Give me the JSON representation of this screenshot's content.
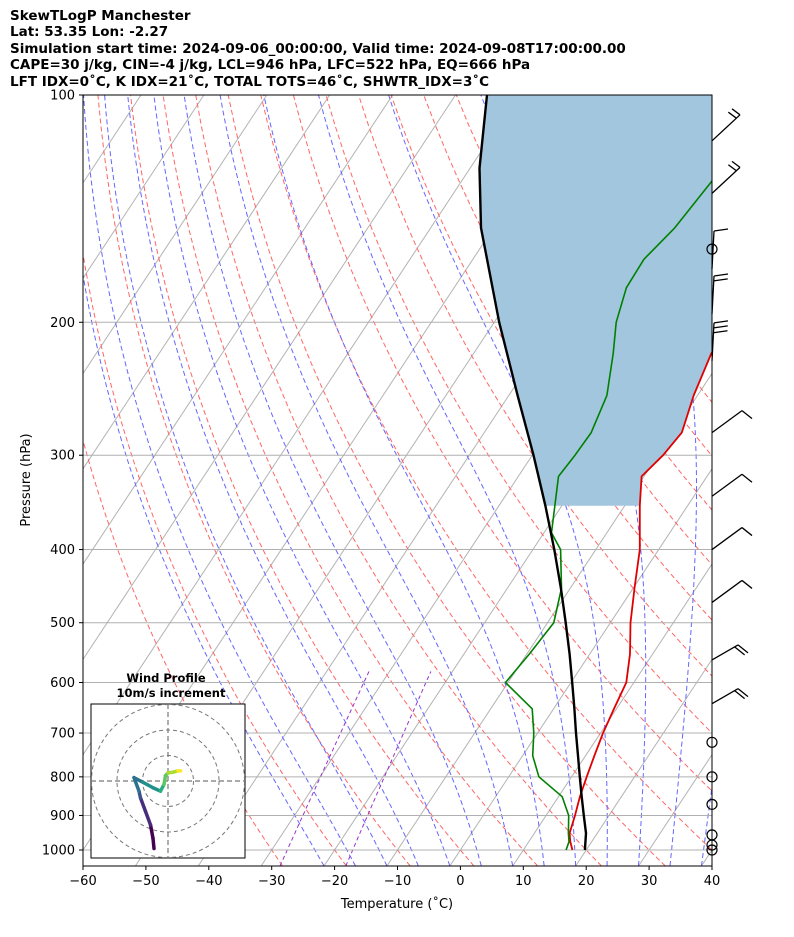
{
  "header": {
    "line1": "SkewTLogP Manchester",
    "line2": "Lat: 53.35   Lon: -2.27",
    "line3": "Simulation start time: 2024-09-06_00:00:00, Valid time: 2024-09-08T17:00:00.00",
    "line4": "CAPE=30 j/kg, CIN=-4 j/kg, LCL=946 hPa, LFC=522 hPa, EQ=666 hPa",
    "line5": "LFT IDX=0˚C, K IDX=21˚C, TOTAL TOTS=46˚C, SHWTR_IDX=3˚C"
  },
  "chart_data": {
    "type": "line",
    "subtype": "skew-t log-p",
    "xlabel": "Temperature (˚C)",
    "ylabel": "Pressure (hPa)",
    "xlim": [
      -60,
      40
    ],
    "ylim": [
      1050,
      100
    ],
    "y_scale": "log",
    "x_ticks": [
      -60,
      -50,
      -40,
      -30,
      -20,
      -10,
      0,
      10,
      20,
      30,
      40
    ],
    "y_ticks": [
      1000,
      900,
      800,
      700,
      600,
      500,
      400,
      300,
      200,
      100
    ],
    "grid": true,
    "series": [
      {
        "role": "temperature",
        "color": "#e00000",
        "points": [
          [
            1000,
            17.8
          ],
          [
            975,
            16.6
          ],
          [
            950,
            15.6
          ],
          [
            900,
            14.6
          ],
          [
            850,
            13.4
          ],
          [
            800,
            12.4
          ],
          [
            750,
            11.4
          ],
          [
            700,
            10.4
          ],
          [
            650,
            9.6
          ],
          [
            600,
            8.8
          ],
          [
            550,
            6.4
          ],
          [
            500,
            3.2
          ],
          [
            450,
            0.2
          ],
          [
            400,
            -3.0
          ],
          [
            350,
            -7.6
          ],
          [
            320,
            -10.4
          ],
          [
            300,
            -9.2
          ],
          [
            280,
            -8.6
          ],
          [
            250,
            -10.6
          ],
          [
            220,
            -12.2
          ],
          [
            200,
            -12.4
          ],
          [
            180,
            -12.8
          ],
          [
            165,
            -14.0
          ],
          [
            150,
            -13.2
          ],
          [
            140,
            -12.4
          ],
          [
            125,
            -11.6
          ],
          [
            115,
            -11.2
          ],
          [
            100,
            -11.6
          ]
        ]
      },
      {
        "role": "dewpoint",
        "color": "#008000",
        "points": [
          [
            1000,
            16.8
          ],
          [
            975,
            16.4
          ],
          [
            950,
            15.4
          ],
          [
            900,
            13.6
          ],
          [
            850,
            10.6
          ],
          [
            800,
            4.8
          ],
          [
            750,
            1.6
          ],
          [
            700,
            -0.6
          ],
          [
            650,
            -3.4
          ],
          [
            600,
            -10.4
          ],
          [
            550,
            -9.6
          ],
          [
            500,
            -9.0
          ],
          [
            450,
            -11.4
          ],
          [
            400,
            -15.6
          ],
          [
            380,
            -18.8
          ],
          [
            320,
            -23.6
          ],
          [
            300,
            -23.2
          ],
          [
            280,
            -23.0
          ],
          [
            250,
            -24.4
          ],
          [
            220,
            -27.8
          ],
          [
            200,
            -30.6
          ],
          [
            180,
            -32.6
          ],
          [
            165,
            -32.8
          ],
          [
            150,
            -31.2
          ],
          [
            130,
            -30.2
          ],
          [
            115,
            -28.2
          ],
          [
            100,
            -26.4
          ]
        ]
      },
      {
        "role": "parcel",
        "color": "#000000",
        "points": [
          [
            1000,
            19.8
          ],
          [
            950,
            18.2
          ],
          [
            900,
            16.0
          ],
          [
            850,
            13.7
          ],
          [
            800,
            11.3
          ],
          [
            750,
            8.8
          ],
          [
            700,
            6.1
          ],
          [
            650,
            3.3
          ],
          [
            600,
            0.2
          ],
          [
            550,
            -3.2
          ],
          [
            500,
            -7.1
          ],
          [
            450,
            -11.5
          ],
          [
            400,
            -16.6
          ],
          [
            350,
            -22.6
          ],
          [
            300,
            -29.8
          ],
          [
            250,
            -38.6
          ],
          [
            200,
            -49.2
          ],
          [
            150,
            -62.0
          ],
          [
            125,
            -68.5
          ],
          [
            100,
            -75.0
          ]
        ]
      }
    ],
    "cape_shading": {
      "color": "#a3c6df",
      "between": [
        "parcel",
        "temperature"
      ],
      "from_hpa": 350,
      "to_hpa": 100
    },
    "reference_lines": [
      "dry adiabats (red dashed)",
      "moist adiabats (blue dashed)",
      "mixing ratio (purple dashed)",
      "isotherms (grey)"
    ],
    "wind_barbs": [
      {
        "p": 1000,
        "calm": true
      },
      {
        "p": 985,
        "calm": true
      },
      {
        "p": 955,
        "calm": true
      },
      {
        "p": 870,
        "calm": true
      },
      {
        "p": 800,
        "calm": true
      },
      {
        "p": 720,
        "calm": true
      },
      {
        "p": 640,
        "kind": "short",
        "feathers": 2
      },
      {
        "p": 560,
        "kind": "short",
        "feathers": 2
      },
      {
        "p": 470,
        "kind": "long",
        "feathers": 1
      },
      {
        "p": 400,
        "kind": "long",
        "feathers": 1
      },
      {
        "p": 340,
        "kind": "long",
        "feathers": 1
      },
      {
        "p": 280,
        "kind": "long",
        "feathers": 1
      },
      {
        "p": 225,
        "kind": "vertical",
        "feathers": 3
      },
      {
        "p": 195,
        "kind": "vertical",
        "feathers": 2
      },
      {
        "p": 170,
        "kind": "vertical",
        "feathers": 1
      },
      {
        "p": 160,
        "calm": true
      },
      {
        "p": 135,
        "kind": "steep",
        "feathers": 2
      },
      {
        "p": 115,
        "kind": "steep",
        "feathers": 2
      }
    ],
    "inset": {
      "title_line1": "Wind Profile",
      "title_line2": "10m/s increment",
      "rings": 3,
      "hodograph": [
        [
          -2.8,
          10.0
        ],
        [
          -3.0,
          8.5
        ],
        [
          -3.5,
          6.5
        ],
        [
          -4.5,
          4.5
        ],
        [
          -5.5,
          2.5
        ],
        [
          -5.8,
          1.5
        ],
        [
          -6.8,
          -0.5
        ],
        [
          -5.0,
          0.2
        ],
        [
          -3.0,
          1.0
        ],
        [
          -1.5,
          1.5
        ],
        [
          -0.8,
          0.5
        ],
        [
          -0.5,
          -0.8
        ],
        [
          0.0,
          -1.2
        ],
        [
          1.0,
          -1.3
        ],
        [
          2.0,
          -1.5
        ],
        [
          2.5,
          -1.5
        ]
      ],
      "hodograph_colormap": "viridis"
    }
  }
}
